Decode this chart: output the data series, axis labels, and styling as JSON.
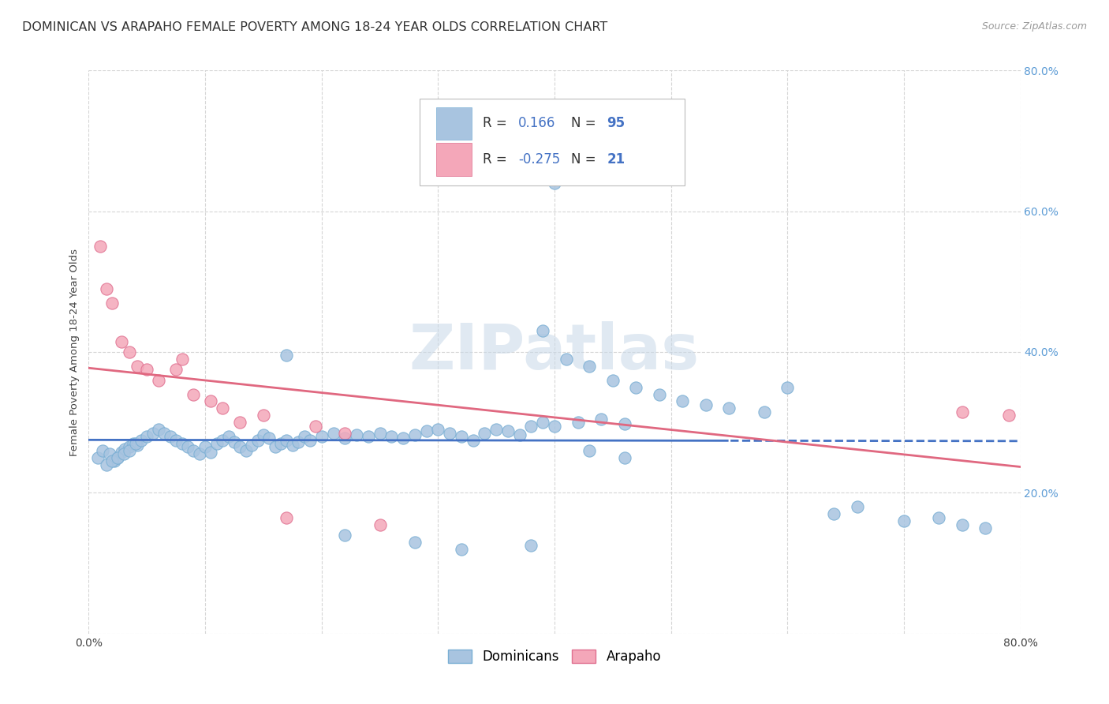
{
  "title": "DOMINICAN VS ARAPAHO FEMALE POVERTY AMONG 18-24 YEAR OLDS CORRELATION CHART",
  "source": "Source: ZipAtlas.com",
  "ylabel": "Female Poverty Among 18-24 Year Olds",
  "xlim": [
    0.0,
    0.8
  ],
  "ylim": [
    0.0,
    0.8
  ],
  "dominican_color": "#a8c4e0",
  "dominican_edge_color": "#7aafd4",
  "arapaho_color": "#f4a7b9",
  "arapaho_edge_color": "#e07090",
  "dominican_line_color": "#4472c4",
  "arapaho_line_color": "#e06880",
  "R_dominican": "0.166",
  "N_dominican": "95",
  "R_arapaho": "-0.275",
  "N_arapaho": "21",
  "legend_text_color": "#4472c4",
  "legend_R_color": "#333333",
  "legend_label_color": "#4472c4",
  "watermark": "ZIPatlas",
  "background_color": "#ffffff",
  "grid_color": "#cccccc",
  "title_fontsize": 11.5,
  "axis_label_fontsize": 9.5,
  "tick_fontsize": 10,
  "legend_fontsize": 12,
  "source_fontsize": 9,
  "dom_scatter_x": [
    0.008,
    0.012,
    0.018,
    0.022,
    0.025,
    0.028,
    0.031,
    0.035,
    0.038,
    0.042,
    0.015,
    0.02,
    0.025,
    0.03,
    0.035,
    0.04,
    0.045,
    0.05,
    0.055,
    0.06,
    0.065,
    0.07,
    0.075,
    0.08,
    0.085,
    0.09,
    0.095,
    0.1,
    0.105,
    0.11,
    0.115,
    0.12,
    0.125,
    0.13,
    0.135,
    0.14,
    0.145,
    0.15,
    0.155,
    0.16,
    0.165,
    0.17,
    0.175,
    0.18,
    0.185,
    0.19,
    0.2,
    0.21,
    0.22,
    0.23,
    0.24,
    0.25,
    0.26,
    0.27,
    0.28,
    0.29,
    0.3,
    0.31,
    0.32,
    0.33,
    0.34,
    0.35,
    0.36,
    0.37,
    0.38,
    0.39,
    0.4,
    0.42,
    0.44,
    0.46,
    0.39,
    0.41,
    0.43,
    0.45,
    0.47,
    0.49,
    0.51,
    0.53,
    0.55,
    0.58,
    0.4,
    0.43,
    0.46,
    0.6,
    0.64,
    0.66,
    0.7,
    0.73,
    0.75,
    0.77,
    0.17,
    0.22,
    0.28,
    0.38,
    0.32
  ],
  "dom_scatter_y": [
    0.25,
    0.26,
    0.255,
    0.245,
    0.25,
    0.258,
    0.262,
    0.265,
    0.27,
    0.268,
    0.24,
    0.245,
    0.25,
    0.255,
    0.26,
    0.27,
    0.275,
    0.28,
    0.285,
    0.29,
    0.285,
    0.28,
    0.275,
    0.27,
    0.265,
    0.26,
    0.255,
    0.265,
    0.258,
    0.27,
    0.275,
    0.28,
    0.272,
    0.265,
    0.26,
    0.268,
    0.275,
    0.282,
    0.278,
    0.265,
    0.27,
    0.275,
    0.268,
    0.272,
    0.28,
    0.275,
    0.28,
    0.285,
    0.278,
    0.282,
    0.28,
    0.285,
    0.28,
    0.278,
    0.282,
    0.288,
    0.29,
    0.285,
    0.28,
    0.275,
    0.285,
    0.29,
    0.288,
    0.282,
    0.295,
    0.3,
    0.295,
    0.3,
    0.305,
    0.298,
    0.43,
    0.39,
    0.38,
    0.36,
    0.35,
    0.34,
    0.33,
    0.325,
    0.32,
    0.315,
    0.64,
    0.26,
    0.25,
    0.35,
    0.17,
    0.18,
    0.16,
    0.165,
    0.155,
    0.15,
    0.395,
    0.14,
    0.13,
    0.125,
    0.12
  ],
  "ara_scatter_x": [
    0.01,
    0.015,
    0.02,
    0.028,
    0.035,
    0.042,
    0.05,
    0.06,
    0.075,
    0.09,
    0.105,
    0.115,
    0.13,
    0.15,
    0.17,
    0.195,
    0.22,
    0.25,
    0.08,
    0.75,
    0.79
  ],
  "ara_scatter_y": [
    0.55,
    0.49,
    0.47,
    0.415,
    0.4,
    0.38,
    0.375,
    0.36,
    0.375,
    0.34,
    0.33,
    0.32,
    0.3,
    0.31,
    0.165,
    0.295,
    0.285,
    0.155,
    0.39,
    0.315,
    0.31
  ]
}
